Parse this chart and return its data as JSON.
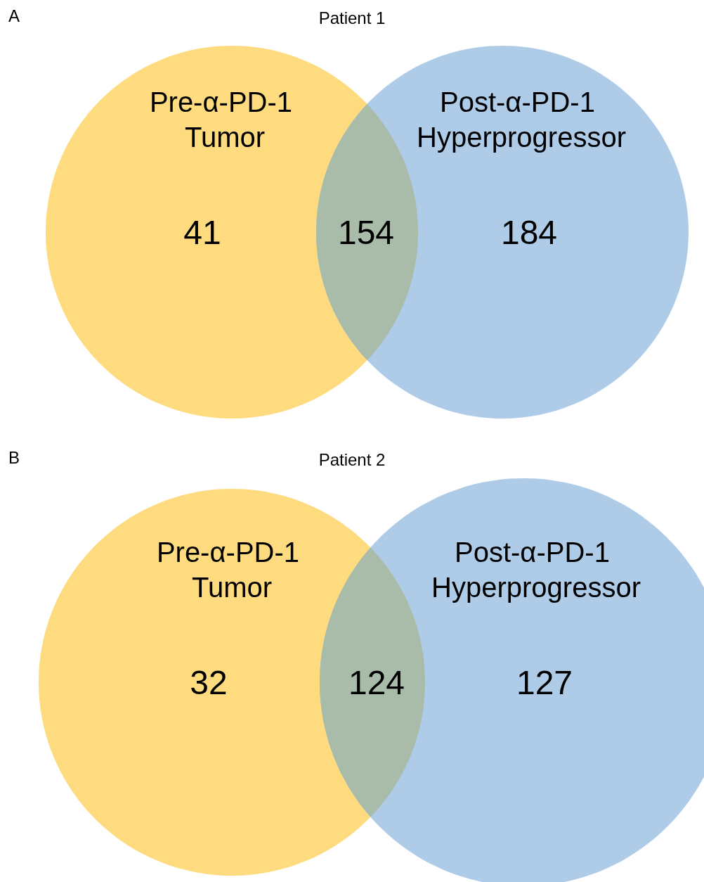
{
  "chart_data": [
    {
      "type": "other",
      "title": "Patient 1",
      "annotations": [
        "A"
      ],
      "categories": [
        "Pre-α-PD-1 Tumor",
        null,
        "Post-α-PD-1 Hyperprogressor"
      ],
      "values": [
        41,
        154,
        184
      ],
      "data_labels": true,
      "colors": [
        "#fddb7e",
        "#a9bca9",
        "#aecbe8"
      ]
    },
    {
      "type": "other",
      "title": "Patient 2",
      "annotations": [
        "B"
      ],
      "categories": [
        "Pre-α-PD-1 Tumor",
        null,
        "Post-α-PD-1 Hyperprogressor"
      ],
      "values": [
        32,
        124,
        127
      ],
      "data_labels": true,
      "colors": [
        "#fddb7e",
        "#a9bca9",
        "#aecbe8"
      ]
    }
  ]
}
